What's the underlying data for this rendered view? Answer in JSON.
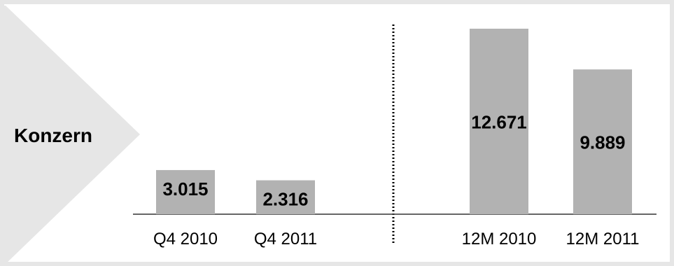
{
  "section_label": "Konzern",
  "colors": {
    "bar": "#b2b2b2",
    "panel": "#e6e6e6",
    "background": "#ffffff",
    "axis": "#333333",
    "text": "#000000"
  },
  "chart_data": {
    "type": "bar",
    "title": "",
    "xlabel": "",
    "ylabel": "",
    "categories": [
      "Q4 2010",
      "Q4 2011",
      "12M 2010",
      "12M 2011"
    ],
    "values": [
      3015,
      2316,
      12671,
      9889
    ],
    "data_labels": [
      "3.015",
      "2.316",
      "12.671",
      "9.889"
    ],
    "groups": [
      {
        "categories": [
          "Q4 2010",
          "Q4 2011"
        ]
      },
      {
        "categories": [
          "12M 2010",
          "12M 2011"
        ]
      }
    ],
    "separator": "dotted vertical line between groups",
    "ylim": [
      0,
      13000
    ],
    "grid": false,
    "legend": "none"
  }
}
